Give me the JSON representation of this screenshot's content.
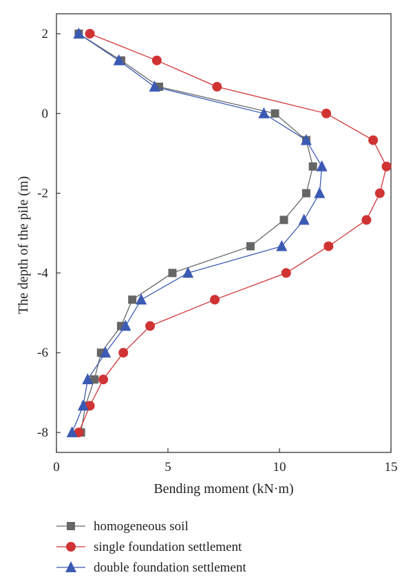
{
  "chart_data": {
    "type": "line",
    "xlabel": "Bending moment (kN·m)",
    "ylabel": "The depth of the pile (m)",
    "xlim": [
      0,
      15
    ],
    "ylim": [
      -8.5,
      2.5
    ],
    "xticks": [
      0,
      5,
      10,
      15
    ],
    "yticks": [
      2,
      0,
      -2,
      -4,
      -6,
      -8
    ],
    "grid": false,
    "legend_position": "bottom",
    "series": [
      {
        "name": "homogeneous soil",
        "color": "#666666",
        "marker": "square",
        "points": [
          [
            1.0,
            2.0
          ],
          [
            2.9,
            1.33
          ],
          [
            4.6,
            0.67
          ],
          [
            9.8,
            0.0
          ],
          [
            11.2,
            -0.67
          ],
          [
            11.5,
            -1.33
          ],
          [
            11.2,
            -2.0
          ],
          [
            10.2,
            -2.67
          ],
          [
            8.7,
            -3.33
          ],
          [
            5.2,
            -4.0
          ],
          [
            3.4,
            -4.67
          ],
          [
            2.9,
            -5.33
          ],
          [
            2.0,
            -6.0
          ],
          [
            1.7,
            -6.67
          ],
          [
            1.3,
            -7.33
          ],
          [
            1.1,
            -8.0
          ]
        ]
      },
      {
        "name": "single foundation settlement",
        "color": "#d03333",
        "marker": "circle",
        "points": [
          [
            1.5,
            2.0
          ],
          [
            4.5,
            1.33
          ],
          [
            7.2,
            0.67
          ],
          [
            12.1,
            0.0
          ],
          [
            14.2,
            -0.67
          ],
          [
            14.8,
            -1.33
          ],
          [
            14.5,
            -2.0
          ],
          [
            13.9,
            -2.67
          ],
          [
            12.2,
            -3.33
          ],
          [
            10.3,
            -4.0
          ],
          [
            7.1,
            -4.67
          ],
          [
            4.2,
            -5.33
          ],
          [
            3.0,
            -6.0
          ],
          [
            2.1,
            -6.67
          ],
          [
            1.5,
            -7.33
          ],
          [
            1.0,
            -8.0
          ]
        ]
      },
      {
        "name": "double foundation settlement",
        "color": "#3b5ab3",
        "marker": "triangle",
        "points": [
          [
            1.0,
            2.0
          ],
          [
            2.8,
            1.33
          ],
          [
            4.4,
            0.67
          ],
          [
            9.3,
            0.0
          ],
          [
            11.2,
            -0.67
          ],
          [
            11.9,
            -1.33
          ],
          [
            11.8,
            -2.0
          ],
          [
            11.1,
            -2.67
          ],
          [
            10.1,
            -3.33
          ],
          [
            5.9,
            -4.0
          ],
          [
            3.8,
            -4.67
          ],
          [
            3.1,
            -5.33
          ],
          [
            2.2,
            -6.0
          ],
          [
            1.4,
            -6.67
          ],
          [
            1.2,
            -7.33
          ],
          [
            0.7,
            -8.0
          ]
        ]
      }
    ]
  }
}
